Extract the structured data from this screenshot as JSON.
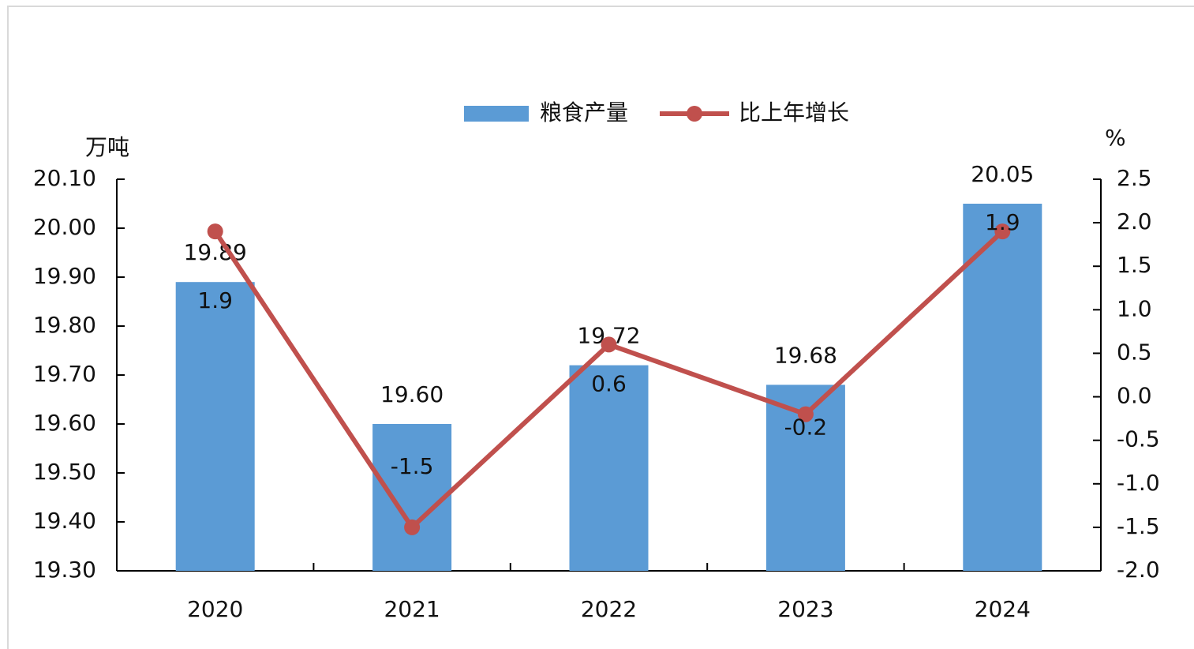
{
  "chart_data": {
    "type": "bar",
    "categories": [
      "2020",
      "2021",
      "2022",
      "2023",
      "2024"
    ],
    "y_label": "万吨",
    "y2_label": "%",
    "series": [
      {
        "name": "粮食产量",
        "type": "bar",
        "color": "#5b9bd5",
        "values": [
          19.89,
          19.6,
          19.72,
          19.68,
          20.05
        ],
        "value_labels": [
          "19.89",
          "19.60",
          "19.72",
          "19.68",
          "20.05"
        ]
      },
      {
        "name": "比上年增长",
        "type": "line",
        "axis": "y2",
        "color": "#c0504d",
        "values": [
          1.9,
          -1.5,
          0.6,
          -0.2,
          1.9
        ]
      }
    ],
    "ylim": [
      19.3,
      20.1
    ],
    "yticks": [
      {
        "value": 19.3,
        "label": "19.30"
      },
      {
        "value": 19.4,
        "label": "19.40"
      },
      {
        "value": 19.5,
        "label": "19.50"
      },
      {
        "value": 19.6,
        "label": "19.60"
      },
      {
        "value": 19.7,
        "label": "19.70"
      },
      {
        "value": 19.8,
        "label": "19.80"
      },
      {
        "value": 19.9,
        "label": "19.90"
      },
      {
        "value": 20.0,
        "label": "20.00"
      },
      {
        "value": 20.1,
        "label": "20.10"
      }
    ],
    "y2lim": [
      -2.0,
      2.5
    ],
    "y2ticks": [
      {
        "value": -2.0,
        "label": "-2.0"
      },
      -1.5,
      {
        "value": -1.0,
        "label": "-1.0"
      },
      -0.5,
      {
        "value": 0.0,
        "label": "0.0"
      },
      0.5,
      {
        "value": 1.0,
        "label": "1.0"
      },
      1.5,
      {
        "value": 2.0,
        "label": "2.0"
      },
      2.5
    ],
    "legend": "top"
  }
}
